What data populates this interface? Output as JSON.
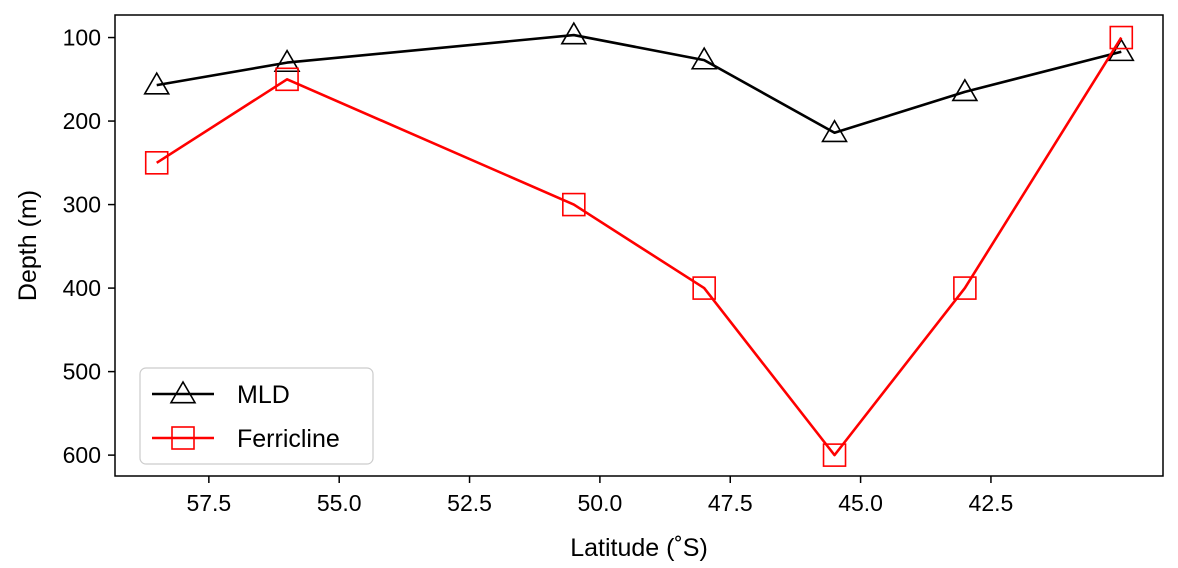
{
  "chart_data": {
    "type": "line",
    "title": "",
    "xlabel": "Latitude (˚S)",
    "ylabel": "Depth (m)",
    "xlim": [
      59.3,
      39.2
    ],
    "ylim": [
      625,
      73
    ],
    "x_reversed": true,
    "y_reversed": true,
    "xticks": [
      57.5,
      55.0,
      52.5,
      50.0,
      47.5,
      45.0,
      42.5
    ],
    "xtick_labels": [
      "57.5",
      "55.0",
      "52.5",
      "50.0",
      "47.5",
      "45.0",
      "42.5"
    ],
    "yticks": [
      100,
      200,
      300,
      400,
      500,
      600
    ],
    "ytick_labels": [
      "100",
      "200",
      "300",
      "400",
      "500",
      "600"
    ],
    "grid": false,
    "legend_position": "lower-left",
    "x": [
      58.5,
      56.0,
      50.5,
      48.0,
      45.5,
      43.0,
      40.0
    ],
    "series": [
      {
        "name": "MLD",
        "color": "#000000",
        "marker": "triangle",
        "values": [
          157,
          130,
          97,
          127,
          214,
          165,
          117
        ]
      },
      {
        "name": "Ferricline",
        "color": "#ff0000",
        "marker": "square",
        "values": [
          250,
          150,
          300,
          400,
          600,
          400,
          100
        ]
      }
    ]
  }
}
